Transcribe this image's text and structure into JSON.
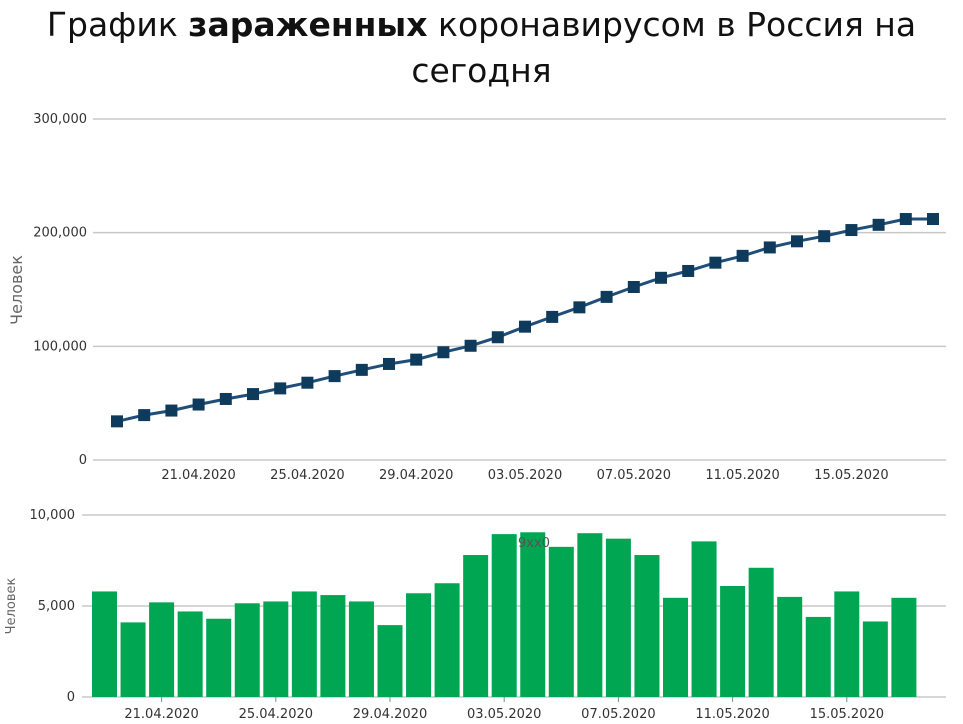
{
  "title": {
    "before": "График ",
    "bold": "зараженных",
    "after": " коронавирусом в Россия на сегодня"
  },
  "colors": {
    "line": "#1f4e79",
    "marker": "#0e3b5c",
    "bar": "#00a651",
    "grid": "#c8c8c8"
  },
  "chart_data": [
    {
      "type": "line",
      "ylabel": "Человек",
      "ylim": [
        0,
        300000
      ],
      "yticks": [
        "0",
        "100,000",
        "200,000",
        "300,000"
      ],
      "xticks": [
        "21.04.2020",
        "25.04.2020",
        "29.04.2020",
        "03.05.2020",
        "07.05.2020",
        "11.05.2020",
        "15.05.2020"
      ],
      "grid": true,
      "x": [
        "18.04.2020",
        "19.04.2020",
        "20.04.2020",
        "21.04.2020",
        "22.04.2020",
        "23.04.2020",
        "24.04.2020",
        "25.04.2020",
        "26.04.2020",
        "27.04.2020",
        "28.04.2020",
        "29.04.2020",
        "30.04.2020",
        "01.05.2020",
        "02.05.2020",
        "03.05.2020",
        "04.05.2020",
        "05.05.2020",
        "06.05.2020",
        "07.05.2020",
        "08.05.2020",
        "09.05.2020",
        "10.05.2020",
        "11.05.2020",
        "12.05.2020",
        "13.05.2020",
        "14.05.2020",
        "15.05.2020",
        "16.05.2020",
        "17.05.2020",
        "18.05.2020"
      ],
      "values": [
        34000,
        39500,
        43500,
        48800,
        53700,
        58000,
        63000,
        68000,
        73800,
        79300,
        84500,
        88300,
        94800,
        100500,
        108000,
        117300,
        125900,
        134300,
        143500,
        152200,
        160300,
        166300,
        173600,
        179600,
        187000,
        192400,
        196900,
        202300,
        206900,
        212000,
        212000
      ]
    },
    {
      "type": "bar",
      "ylabel": "Человек",
      "ylim": [
        0,
        10000
      ],
      "yticks": [
        "0",
        "5,000",
        "10,000"
      ],
      "xticks": [
        "21.04.2020",
        "25.04.2020",
        "29.04.2020",
        "03.05.2020",
        "07.05.2020",
        "11.05.2020",
        "15.05.2020"
      ],
      "grid": true,
      "annotation": "9xx0",
      "values": [
        5800,
        4100,
        5200,
        4700,
        4300,
        5150,
        5250,
        5800,
        5600,
        5250,
        3950,
        5700,
        6250,
        7800,
        8950,
        9050,
        8250,
        9000,
        8700,
        7800,
        5450,
        8550,
        6100,
        7100,
        5500,
        4400,
        5800,
        4150,
        5450
      ]
    }
  ]
}
